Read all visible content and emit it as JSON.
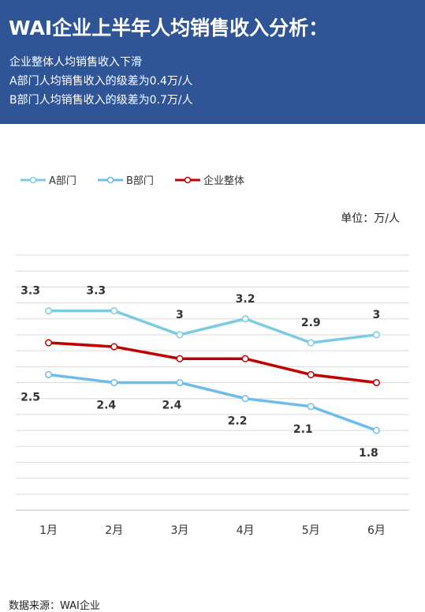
{
  "header": {
    "title": "WAI企业上半年人均销售收入分析：",
    "lines": [
      "企业整体人均销售收入下滑",
      "A部门人均销售收入的级差为0.4万/人",
      "B部门人均销售收入的级差为0.7万/人"
    ]
  },
  "chart_data": {
    "type": "line",
    "categories": [
      "1月",
      "2月",
      "3月",
      "4月",
      "5月",
      "6月"
    ],
    "series": [
      {
        "name": "A部门",
        "values": [
          3.3,
          3.3,
          3.0,
          3.2,
          2.9,
          3.0
        ],
        "color": "#7ccbe0",
        "labels": true,
        "label_position": "above"
      },
      {
        "name": "B部门",
        "values": [
          2.5,
          2.4,
          2.4,
          2.2,
          2.1,
          1.8
        ],
        "color": "#6cbcec",
        "labels": true,
        "label_position": "below"
      },
      {
        "name": "企业整体",
        "values": [
          2.9,
          2.85,
          2.7,
          2.7,
          2.5,
          2.4
        ],
        "color": "#c00000",
        "labels": false
      }
    ],
    "unit_label": "单位：万/人",
    "ylim": [
      0.8,
      4.0
    ],
    "grid": true,
    "legend": "top-left"
  },
  "footer": {
    "source": "数据来源：WAI企业"
  }
}
